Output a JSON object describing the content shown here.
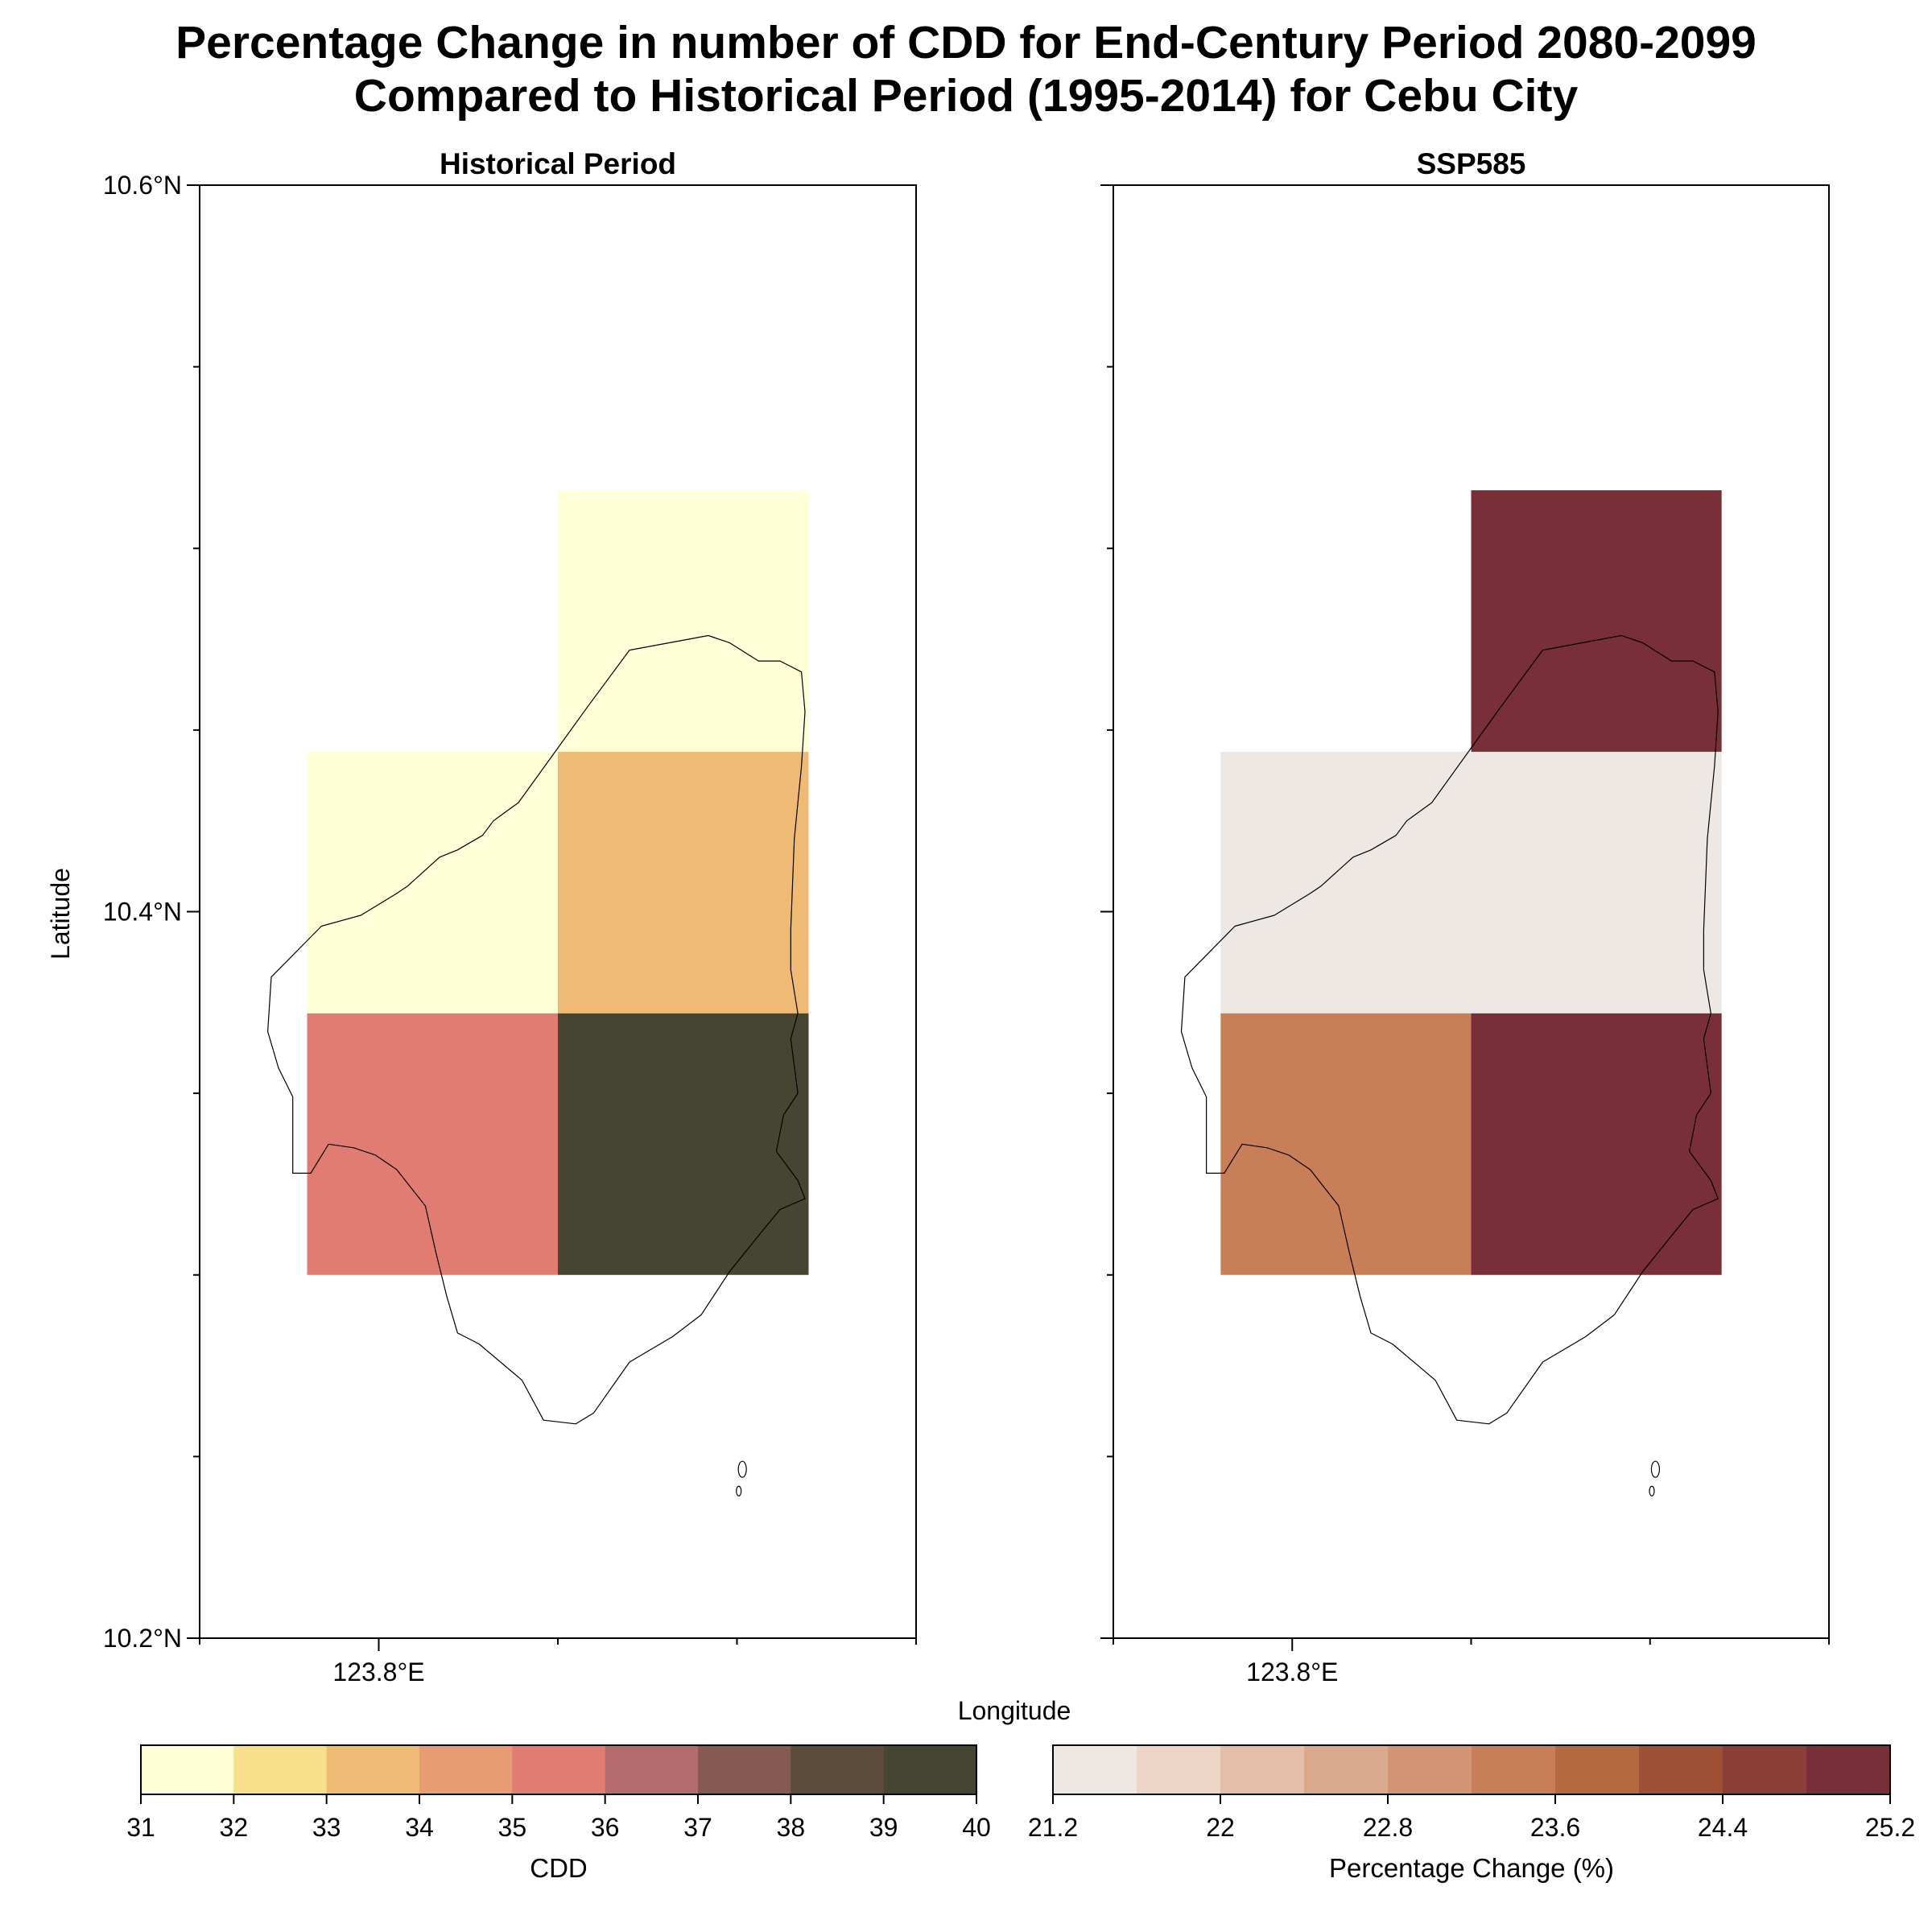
{
  "title_lines": [
    "Percentage Change in number of CDD for End-Century Period 2080-2099",
    "Compared to Historical Period (1995-2014) for Cebu City"
  ],
  "ylabel": "Latitude",
  "xlabel": "Longitude",
  "chart_data": [
    {
      "type": "heatmap",
      "title": "Historical Period",
      "colorbar_label": "CDD",
      "colorbar_ticks": [
        "31",
        "32",
        "33",
        "34",
        "35",
        "36",
        "37",
        "38",
        "39",
        "40"
      ],
      "colorbar_min": 31,
      "colorbar_max": 40,
      "colorbar_colors": [
        "#ffffd8",
        "#f7df8c",
        "#eeba74",
        "#e89c74",
        "#e07c72",
        "#b46b6b",
        "#855a50",
        "#5d4c3c",
        "#454532"
      ],
      "lon_range": [
        123.75,
        123.95
      ],
      "lat_range": [
        10.2,
        10.6
      ],
      "x_tick_labels": [
        "123.8°E"
      ],
      "y_tick_labels": [
        "10.6°N",
        "10.4°N",
        "10.2°N"
      ],
      "cells": [
        {
          "lon": [
            123.85,
            123.92
          ],
          "lat": [
            10.444,
            10.516
          ],
          "value": 31.5
        },
        {
          "lon": [
            123.78,
            123.85
          ],
          "lat": [
            10.372,
            10.444
          ],
          "value": 31.5
        },
        {
          "lon": [
            123.85,
            123.92
          ],
          "lat": [
            10.372,
            10.444
          ],
          "value": 33.5
        },
        {
          "lon": [
            123.78,
            123.85
          ],
          "lat": [
            10.3,
            10.372
          ],
          "value": 35.5
        },
        {
          "lon": [
            123.85,
            123.92
          ],
          "lat": [
            10.3,
            10.372
          ],
          "value": 39.5
        }
      ]
    },
    {
      "type": "heatmap",
      "title": "SSP585",
      "colorbar_label": "Percentage Change (%)",
      "colorbar_ticks": [
        "21.2",
        "22",
        "22.8",
        "23.6",
        "24.4",
        "25.2"
      ],
      "colorbar_min": 21.2,
      "colorbar_max": 25.2,
      "colorbar_colors": [
        "#ede8e4",
        "#ecd4c6",
        "#e4beaa",
        "#daa88c",
        "#d29574",
        "#c87f58",
        "#b66940",
        "#9f4f36",
        "#8b3d37",
        "#782f38"
      ],
      "lon_range": [
        123.75,
        123.95
      ],
      "lat_range": [
        10.2,
        10.6
      ],
      "x_tick_labels": [
        "123.8°E"
      ],
      "y_tick_labels": [],
      "cells": [
        {
          "lon": [
            123.85,
            123.92
          ],
          "lat": [
            10.444,
            10.516
          ],
          "value": 25.0
        },
        {
          "lon": [
            123.78,
            123.85
          ],
          "lat": [
            10.372,
            10.444
          ],
          "value": 21.4
        },
        {
          "lon": [
            123.85,
            123.92
          ],
          "lat": [
            10.372,
            10.444
          ],
          "value": 21.4
        },
        {
          "lon": [
            123.78,
            123.85
          ],
          "lat": [
            10.3,
            10.372
          ],
          "value": 23.2
        },
        {
          "lon": [
            123.85,
            123.92
          ],
          "lat": [
            10.3,
            10.372
          ],
          "value": 25.0
        }
      ]
    }
  ]
}
